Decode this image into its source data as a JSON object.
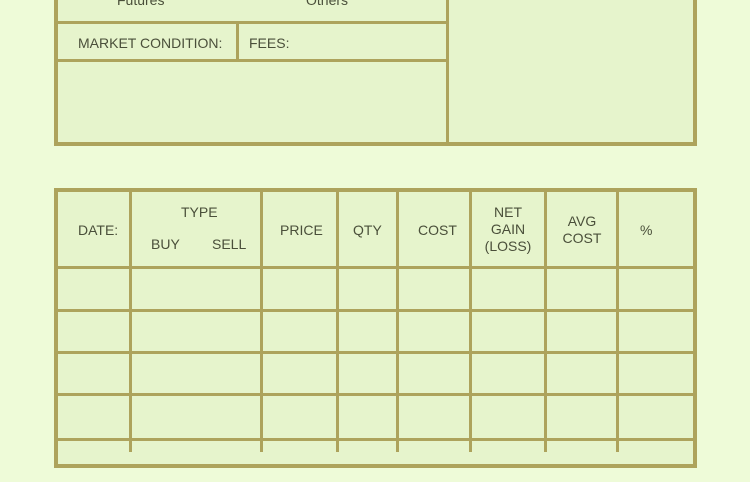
{
  "top_section": {
    "futures_label": "Futures",
    "others_label": "Others",
    "market_condition_label": "MARKET CONDITION:",
    "fees_label": "FEES:"
  },
  "trade_table": {
    "headers": {
      "date": "DATE:",
      "type": "TYPE",
      "buy": "BUY",
      "sell": "SELL",
      "price": "PRICE",
      "qty": "QTY",
      "cost": "COST",
      "net_gain_1": "NET",
      "net_gain_2": "GAIN",
      "net_gain_3": "(LOSS)",
      "avg_cost_1": "AVG",
      "avg_cost_2": "COST",
      "percent": "%"
    },
    "rows": [
      [],
      [],
      [],
      [],
      []
    ]
  },
  "colors": {
    "background": "#eefbd8",
    "cell": "#e6f4cc",
    "border": "#ada35c"
  }
}
